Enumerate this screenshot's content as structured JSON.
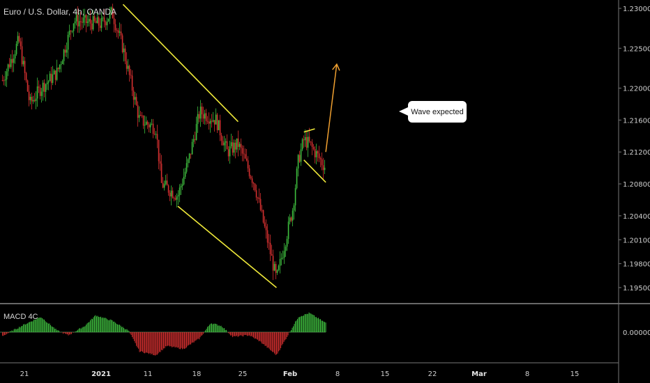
{
  "header": {
    "title": "Euro / U.S. Dollar, 4h, OANDA"
  },
  "indicator": {
    "title": "MACD 4C"
  },
  "annotation": {
    "text": "Wave expected"
  },
  "colors": {
    "up": "#3fbf3f",
    "down": "#d63030",
    "trendline": "#f0ea3a",
    "arrow": "#f0a030",
    "axis": "#cfcfcf",
    "separator": "#cfcfcf"
  },
  "chart_data": [
    {
      "type": "candlestick",
      "title": "Euro / U.S. Dollar, 4h, OANDA",
      "y_axis_side": "right",
      "y_ticks": [
        1.23,
        1.225,
        1.22,
        1.216,
        1.212,
        1.208,
        1.204,
        1.201,
        1.198,
        1.195
      ],
      "y_tick_labels": [
        "1.23000",
        "1.22500",
        "1.22000",
        "1.21600",
        "1.21200",
        "1.20800",
        "1.20400",
        "1.20100",
        "1.19800",
        "1.19500"
      ],
      "x_tick_labels": [
        "21",
        "2021",
        "11",
        "18",
        "25",
        "Feb",
        "8",
        "15",
        "22",
        "Mar",
        "8",
        "15"
      ],
      "price_path": [
        [
          "2020-12-17",
          1.221
        ],
        [
          "2020-12-20",
          1.226
        ],
        [
          "2020-12-22",
          1.218
        ],
        [
          "2020-12-24",
          1.22
        ],
        [
          "2020-12-27",
          1.222
        ],
        [
          "2020-12-30",
          1.2285
        ],
        [
          "2021-01-04",
          1.228
        ],
        [
          "2021-01-06",
          1.2295
        ],
        [
          "2021-01-08",
          1.225
        ],
        [
          "2021-01-11",
          1.216
        ],
        [
          "2021-01-14",
          1.215
        ],
        [
          "2021-01-15",
          1.208
        ],
        [
          "2021-01-18",
          1.2065
        ],
        [
          "2021-01-20",
          1.211
        ],
        [
          "2021-01-22",
          1.217
        ],
        [
          "2021-01-25",
          1.216
        ],
        [
          "2021-01-27",
          1.212
        ],
        [
          "2021-01-29",
          1.213
        ],
        [
          "2021-02-01",
          1.208
        ],
        [
          "2021-02-03",
          1.202
        ],
        [
          "2021-02-04",
          1.199
        ],
        [
          "2021-02-05",
          1.196
        ],
        [
          "2021-02-08",
          1.205
        ],
        [
          "2021-02-09",
          1.211
        ],
        [
          "2021-02-10",
          1.2135
        ],
        [
          "2021-02-11",
          1.213
        ],
        [
          "2021-02-12",
          1.212
        ],
        [
          "2021-02-14",
          1.21
        ]
      ],
      "trendlines": [
        {
          "from": [
            "2021-01-08",
            1.2305
          ],
          "to": [
            "2021-01-29",
            1.2158
          ]
        },
        {
          "from": [
            "2021-01-18",
            1.2052
          ],
          "to": [
            "2021-02-05",
            1.195
          ]
        },
        {
          "from": [
            "2021-02-10",
            1.2145
          ],
          "to": [
            "2021-02-12",
            1.2149
          ]
        },
        {
          "from": [
            "2021-02-10",
            1.211
          ],
          "to": [
            "2021-02-14",
            1.2082
          ]
        }
      ],
      "projection_arrow": {
        "from": [
          "2021-02-14",
          1.212
        ],
        "to": [
          "2021-02-16",
          1.223
        ]
      },
      "grid": false
    },
    {
      "type": "bar",
      "title": "MACD 4C",
      "y_ticks": [
        0
      ],
      "y_tick_labels": [
        "0.00000"
      ],
      "histogram_path": [
        [
          "2020-12-17",
          -0.0005
        ],
        [
          "2020-12-21",
          0.001
        ],
        [
          "2020-12-24",
          0.002
        ],
        [
          "2020-12-27",
          0.0002
        ],
        [
          "2020-12-29",
          -0.0004
        ],
        [
          "2021-01-01",
          0.0008
        ],
        [
          "2021-01-03",
          0.0022
        ],
        [
          "2021-01-06",
          0.0015
        ],
        [
          "2021-01-09",
          0.0002
        ],
        [
          "2021-01-11",
          -0.0025
        ],
        [
          "2021-01-14",
          -0.003
        ],
        [
          "2021-01-16",
          -0.0018
        ],
        [
          "2021-01-19",
          -0.0022
        ],
        [
          "2021-01-22",
          -0.0008
        ],
        [
          "2021-01-24",
          0.0012
        ],
        [
          "2021-01-26",
          0.0008
        ],
        [
          "2021-01-28",
          -0.0006
        ],
        [
          "2021-01-31",
          -0.0004
        ],
        [
          "2021-02-02",
          -0.0012
        ],
        [
          "2021-02-05",
          -0.003
        ],
        [
          "2021-02-07",
          -0.0005
        ],
        [
          "2021-02-09",
          0.002
        ],
        [
          "2021-02-11",
          0.0025
        ],
        [
          "2021-02-14",
          0.0012
        ]
      ],
      "grid": false
    }
  ]
}
